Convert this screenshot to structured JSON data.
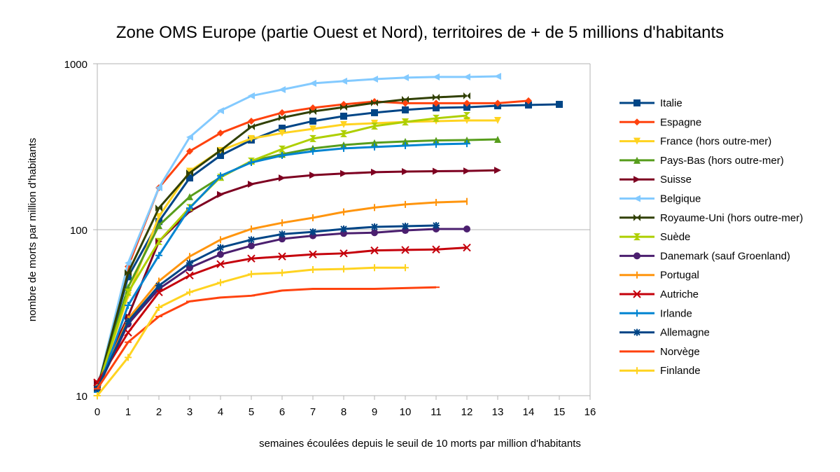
{
  "chart_data": {
    "type": "line",
    "title": "Zone OMS Europe (partie Ouest et Nord), territoires de + de 5 millions d'habitants",
    "xlabel": "semaines écoulées depuis le seuil de 10 morts par million d'habitants",
    "ylabel": "nombre de morts par million d'habitants",
    "xlim": [
      0,
      16
    ],
    "ylim": [
      10,
      1000
    ],
    "yscale": "log",
    "x_ticks": [
      "0",
      "1",
      "2",
      "3",
      "4",
      "5",
      "6",
      "7",
      "8",
      "9",
      "10",
      "11",
      "12",
      "13",
      "14",
      "15",
      "16"
    ],
    "y_ticks": [
      "10",
      "100",
      "1000"
    ],
    "grid": true,
    "legend_position": "right",
    "series": [
      {
        "name": "Italie",
        "color": "#004586",
        "marker": "square",
        "values": [
          11,
          52,
          112,
          205,
          280,
          347,
          409,
          451,
          483,
          507,
          527,
          542,
          547,
          558,
          564,
          569
        ]
      },
      {
        "name": "Espagne",
        "color": "#ff420e",
        "marker": "diamond",
        "values": [
          11,
          60,
          179,
          297,
          382,
          451,
          507,
          542,
          569,
          592,
          578,
          578,
          578,
          578,
          598
        ]
      },
      {
        "name": "France (hors outre-mer)",
        "color": "#ffd320",
        "marker": "triangle-down",
        "values": [
          11,
          40,
          120,
          225,
          300,
          354,
          382,
          405,
          430,
          438,
          446,
          451,
          455,
          455
        ]
      },
      {
        "name": "Pays-Bas (hors outre-mer)",
        "color": "#579d1c",
        "marker": "triangle-up",
        "values": [
          11,
          45,
          106,
          158,
          207,
          259,
          285,
          309,
          324,
          334,
          340,
          345,
          347,
          350
        ]
      },
      {
        "name": "Suisse",
        "color": "#7e0021",
        "marker": "triangle-right",
        "values": [
          12,
          30,
          85,
          129,
          163,
          188,
          205,
          213,
          218,
          222,
          224,
          225,
          226,
          228
        ]
      },
      {
        "name": "Belgique",
        "color": "#83caff",
        "marker": "triangle-left",
        "values": [
          11,
          63,
          179,
          361,
          521,
          640,
          698,
          762,
          785,
          808,
          824,
          832,
          832,
          840
        ]
      },
      {
        "name": "Royaume-Uni (hors outre-mer)",
        "color": "#314004",
        "marker": "bowtie",
        "values": [
          11,
          55,
          135,
          220,
          300,
          417,
          473,
          516,
          547,
          581,
          609,
          627,
          640
        ]
      },
      {
        "name": "Suède",
        "color": "#aecf00",
        "marker": "hourglass",
        "values": [
          11,
          42,
          85,
          136,
          207,
          259,
          306,
          354,
          379,
          421,
          446,
          469,
          487
        ]
      },
      {
        "name": "Danemark (sauf Groenland)",
        "color": "#4b1f6f",
        "marker": "circle",
        "values": [
          11,
          27,
          44,
          59,
          71,
          80,
          88,
          92,
          95,
          96,
          99,
          101,
          101
        ]
      },
      {
        "name": "Portugal",
        "color": "#ff950e",
        "marker": "bar",
        "values": [
          11,
          29,
          49,
          69,
          87,
          101,
          110,
          118,
          128,
          136,
          142,
          146,
          148
        ]
      },
      {
        "name": "Autriche",
        "color": "#c5000b",
        "marker": "x",
        "values": [
          12,
          24,
          42,
          53,
          62,
          67,
          69,
          71,
          72,
          75,
          75.5,
          76,
          78
        ]
      },
      {
        "name": "Irlande",
        "color": "#0084d1",
        "marker": "plus",
        "values": [
          10.5,
          35,
          70,
          135,
          211,
          254,
          280,
          297,
          309,
          315,
          321,
          327,
          330
        ]
      },
      {
        "name": "Allemagne",
        "color": "#004586",
        "marker": "star",
        "values": [
          11,
          28,
          46,
          63,
          78,
          87,
          94,
          97,
          101,
          104,
          105,
          106
        ]
      },
      {
        "name": "Norvège",
        "color": "#ff420e",
        "marker": "dash",
        "values": [
          11,
          21,
          30,
          37,
          39,
          40,
          43,
          44,
          44,
          44,
          44.5,
          45
        ]
      },
      {
        "name": "Finlande",
        "color": "#ffd320",
        "marker": "plus",
        "values": [
          10,
          17,
          34,
          42,
          48,
          54,
          55,
          57.5,
          58,
          59,
          59
        ]
      }
    ]
  }
}
